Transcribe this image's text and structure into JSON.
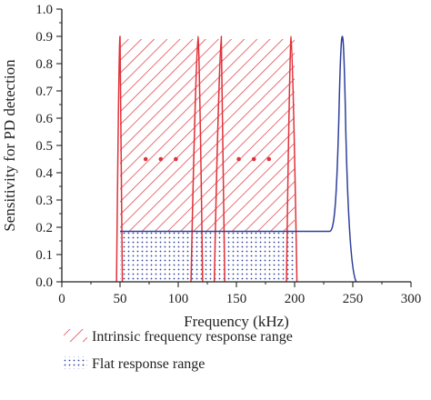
{
  "chart_data": {
    "type": "line",
    "title": "",
    "xlabel": "Frequency (kHz)",
    "ylabel": "Sensitivity for PD detection",
    "xlim": [
      0,
      300
    ],
    "ylim": [
      0,
      1.0
    ],
    "xticks": [
      "0",
      "50",
      "100",
      "150",
      "200",
      "250",
      "300"
    ],
    "yticks": [
      "0.0",
      "0.1",
      "0.2",
      "0.3",
      "0.4",
      "0.5",
      "0.6",
      "0.7",
      "0.8",
      "0.9",
      "1.0"
    ],
    "grid": false,
    "series": [
      {
        "color": "#e0323a",
        "peaks": [
          {
            "x_start": 47,
            "x_peak": 50,
            "x_end": 52,
            "value": 0.9
          },
          {
            "x_start": 111,
            "x_peak": 117,
            "x_end": 121,
            "value": 0.9
          },
          {
            "x_start": 131,
            "x_peak": 137,
            "x_end": 140,
            "value": 0.9
          },
          {
            "x_start": 193,
            "x_peak": 197,
            "x_end": 202,
            "value": 0.9
          }
        ]
      },
      {
        "color": "#2e3f9a",
        "points": [
          [
            50,
            0.185
          ],
          [
            230,
            0.185
          ],
          [
            236,
            0.3
          ],
          [
            241,
            0.9
          ],
          [
            246,
            0.3
          ],
          [
            253,
            0.0
          ]
        ]
      }
    ],
    "regions": [
      {
        "name": "Intrinsic frequency response range",
        "pattern": "hatch",
        "color": "#e0323a",
        "x": [
          50,
          200
        ],
        "y": [
          0.185,
          0.89
        ]
      },
      {
        "name": "Flat response range",
        "pattern": "dots",
        "color": "#2e3f9a",
        "x": [
          50,
          200
        ],
        "y": [
          0,
          0.185
        ]
      }
    ],
    "annotations": [
      {
        "text": "• • •",
        "x": 85,
        "y": 0.45
      },
      {
        "text": "• • •",
        "x": 165,
        "y": 0.45
      }
    ],
    "legend": {
      "placement": "bottom",
      "entries": [
        {
          "label": "Intrinsic frequency response range",
          "pattern": "hatch",
          "color": "#e0323a"
        },
        {
          "label": "Flat response range",
          "pattern": "dots",
          "color": "#2e3f9a"
        }
      ]
    }
  }
}
